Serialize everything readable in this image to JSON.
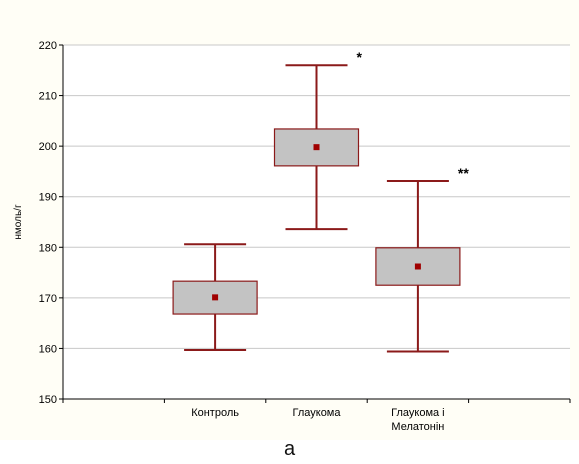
{
  "figure_label": "а",
  "chart_data": {
    "type": "box",
    "ylabel": "нмоль/г",
    "xlabel": "",
    "ylim": [
      150,
      220
    ],
    "yticks": [
      150,
      160,
      170,
      180,
      190,
      200,
      210,
      220
    ],
    "grid": true,
    "categories": [
      {
        "label": "Контроль",
        "label_line2": ""
      },
      {
        "label": "Глаукома",
        "label_line2": ""
      },
      {
        "label": "Глаукома і",
        "label_line2": "Мелатонін"
      }
    ],
    "boxes": [
      {
        "whisker_low": 159.7,
        "q1": 166.8,
        "mean": 170.1,
        "q3": 173.3,
        "whisker_high": 180.6,
        "significance": ""
      },
      {
        "whisker_low": 183.6,
        "q1": 196.1,
        "mean": 199.8,
        "q3": 203.4,
        "whisker_high": 216.0,
        "significance": "*"
      },
      {
        "whisker_low": 159.4,
        "q1": 172.5,
        "mean": 176.2,
        "q3": 179.9,
        "whisker_high": 193.1,
        "significance": "**"
      }
    ],
    "colors": {
      "box_fill": "#c3c3c3",
      "box_stroke": "#8b1a1a",
      "whisker": "#8b1a1a",
      "mean_marker": "#a00000",
      "grid": "#c8c8c8",
      "axis": "#000000",
      "plot_bg": "#ffffff",
      "page_bg": "#fffef6"
    }
  }
}
